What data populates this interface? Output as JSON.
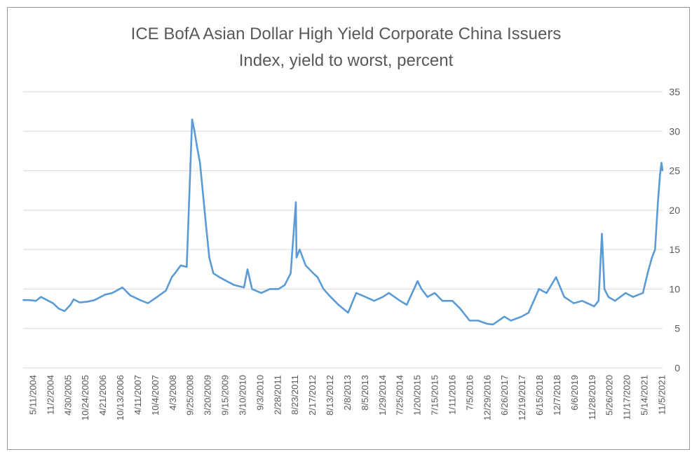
{
  "chart_data": {
    "type": "line",
    "title": "ICE BofA Asian Dollar High Yield Corporate China Issuers",
    "subtitle": "Index, yield to worst, percent",
    "xlabel": "",
    "ylabel": "",
    "ylim": [
      0,
      35
    ],
    "y_ticks": [
      "0",
      "5",
      "10",
      "15",
      "20",
      "25",
      "30",
      "35"
    ],
    "x_ticks": [
      "5/11/2004",
      "11/2/2004",
      "4/30/2005",
      "10/24/2005",
      "4/21/2006",
      "10/13/2006",
      "4/11/2007",
      "10/4/2007",
      "4/3/2008",
      "9/25/2008",
      "3/20/2009",
      "9/15/2009",
      "3/10/2010",
      "9/3/2010",
      "2/28/2011",
      "8/23/2011",
      "2/17/2012",
      "8/13/2012",
      "2/8/2013",
      "8/5/2013",
      "1/29/2014",
      "7/25/2014",
      "1/20/2015",
      "7/15/2015",
      "1/11/2016",
      "7/5/2016",
      "12/29/2016",
      "6/26/2017",
      "12/19/2017",
      "6/15/2018",
      "12/7/2018",
      "6/6/2019",
      "11/28/2019",
      "5/26/2020",
      "11/17/2020",
      "5/14/2021",
      "11/5/2021"
    ],
    "grid": true,
    "legend": "none",
    "color": "#5b9bd5",
    "series": [
      {
        "x": [
          "2004-01-01",
          "2004-03-01",
          "2004-05-11",
          "2004-07-01",
          "2004-09-01",
          "2004-11-02",
          "2005-01-01",
          "2005-03-01",
          "2005-04-30",
          "2005-06-01",
          "2005-08-01",
          "2005-10-24",
          "2006-01-01",
          "2006-04-21",
          "2006-07-01",
          "2006-10-13",
          "2007-01-01",
          "2007-04-11",
          "2007-07-01",
          "2007-10-04",
          "2008-01-01",
          "2008-03-01",
          "2008-04-03",
          "2008-06-01",
          "2008-08-01",
          "2008-09-25",
          "2008-10-20",
          "2008-11-15",
          "2008-12-15",
          "2009-01-15",
          "2009-02-15",
          "2009-03-20",
          "2009-05-01",
          "2009-07-01",
          "2009-09-15",
          "2009-12-01",
          "2010-03-10",
          "2010-04-15",
          "2010-06-01",
          "2010-09-03",
          "2010-12-01",
          "2011-02-28",
          "2011-05-01",
          "2011-07-01",
          "2011-08-23",
          "2011-08-30",
          "2011-10-01",
          "2011-12-01",
          "2012-02-17",
          "2012-04-01",
          "2012-06-01",
          "2012-08-13",
          "2012-11-01",
          "2013-02-08",
          "2013-05-01",
          "2013-08-05",
          "2013-11-01",
          "2014-01-29",
          "2014-04-01",
          "2014-07-25",
          "2014-10-01",
          "2015-01-20",
          "2015-03-01",
          "2015-05-01",
          "2015-07-15",
          "2015-10-01",
          "2016-01-11",
          "2016-04-01",
          "2016-07-05",
          "2016-10-01",
          "2016-12-29",
          "2017-03-01",
          "2017-06-26",
          "2017-09-01",
          "2017-12-19",
          "2018-03-01",
          "2018-06-15",
          "2018-09-01",
          "2018-12-07",
          "2019-03-01",
          "2019-06-06",
          "2019-09-01",
          "2019-11-28",
          "2020-01-01",
          "2020-02-15",
          "2020-03-20",
          "2020-04-15",
          "2020-05-26",
          "2020-08-01",
          "2020-11-17",
          "2021-02-01",
          "2021-05-14",
          "2021-07-01",
          "2021-08-15",
          "2021-09-15",
          "2021-10-15",
          "2021-11-05",
          "2021-11-20",
          "2021-12-01"
        ],
        "values": [
          8.6,
          8.6,
          8.5,
          9.0,
          8.6,
          8.2,
          7.5,
          7.2,
          8.0,
          8.7,
          8.3,
          8.4,
          8.6,
          9.3,
          9.5,
          10.2,
          9.2,
          8.6,
          8.2,
          9.0,
          9.8,
          11.5,
          12.0,
          13.0,
          12.8,
          31.5,
          30.0,
          28.0,
          26.0,
          22.0,
          18.0,
          14.0,
          12.0,
          11.5,
          11.0,
          10.5,
          10.2,
          12.5,
          10.0,
          9.5,
          10.0,
          10.0,
          10.5,
          12.0,
          21.0,
          14.0,
          15.0,
          13.0,
          12.0,
          11.5,
          10.0,
          9.0,
          8.0,
          7.0,
          9.5,
          9.0,
          8.5,
          9.0,
          9.5,
          8.5,
          8.0,
          11.0,
          10.0,
          9.0,
          9.5,
          8.5,
          8.5,
          7.5,
          6.0,
          6.0,
          5.6,
          5.5,
          6.5,
          6.0,
          6.5,
          7.0,
          10.0,
          9.5,
          11.5,
          9.0,
          8.2,
          8.5,
          8.0,
          7.8,
          8.5,
          17.0,
          10.0,
          9.0,
          8.5,
          9.5,
          9.0,
          9.5,
          12.0,
          14.0,
          15.0,
          21.0,
          24.5,
          26.0,
          25.0
        ]
      }
    ]
  }
}
